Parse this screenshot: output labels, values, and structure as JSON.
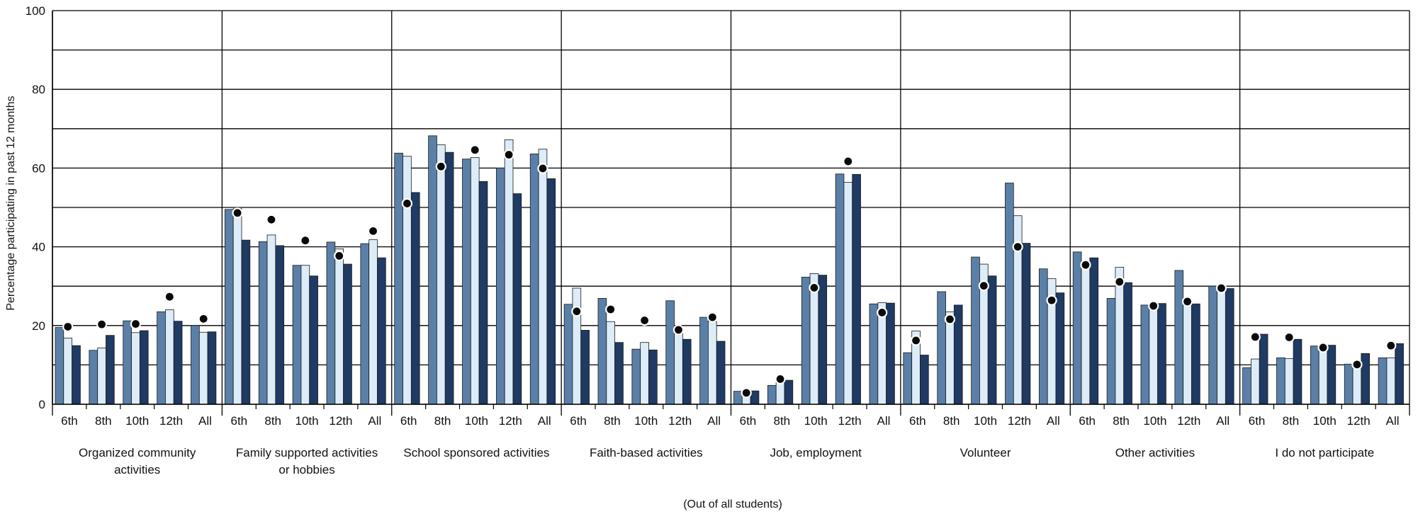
{
  "chart_data": {
    "type": "bar",
    "title": "",
    "ylabel": "Percentage participating in past 12 months",
    "xlabel": "(Out of all students)",
    "ylim": [
      0,
      100
    ],
    "yticks": [
      0,
      20,
      40,
      60,
      80,
      100
    ],
    "grid": true,
    "legend": "none",
    "groups": [
      "Organized community activities",
      "Family supported activities or hobbies",
      "School sponsored activities",
      "Faith-based activities",
      "Job, employment",
      "Volunteer",
      "Other activities",
      "I do not participate"
    ],
    "group_label_lines": [
      [
        "Organized community",
        "activities"
      ],
      [
        "Family supported activities",
        "or hobbies"
      ],
      [
        "School sponsored activities"
      ],
      [
        "Faith-based activities"
      ],
      [
        "Job, employment"
      ],
      [
        "Volunteer"
      ],
      [
        "Other activities"
      ],
      [
        "I do not participate"
      ]
    ],
    "subcategories": [
      "6th",
      "8th",
      "10th",
      "12th",
      "All"
    ],
    "series_colors": [
      "#5b80a8",
      "#dcecf8",
      "#1f3a63"
    ],
    "marker_color": "#0a0a0a",
    "series": [
      {
        "values": [
          [
            19.5,
            13.7,
            21.2,
            23.5,
            20.0
          ],
          [
            49.5,
            41.3,
            35.3,
            41.2,
            40.8
          ],
          [
            63.8,
            68.2,
            62.3,
            60.0,
            63.6
          ],
          [
            25.4,
            26.9,
            14.0,
            26.3,
            22.1
          ],
          [
            3.3,
            4.8,
            32.3,
            58.5,
            25.5
          ],
          [
            13.1,
            28.6,
            37.4,
            56.2,
            34.4
          ],
          [
            38.7,
            26.9,
            25.2,
            34.0,
            30.0
          ],
          [
            9.3,
            11.8,
            14.8,
            10.2,
            11.8
          ]
        ]
      },
      {
        "values": [
          [
            16.8,
            14.3,
            18.2,
            24.0,
            18.3
          ],
          [
            49.7,
            43.0,
            35.3,
            39.5,
            41.8
          ],
          [
            63.0,
            65.9,
            62.7,
            67.2,
            64.8
          ],
          [
            29.5,
            21.0,
            15.7,
            18.0,
            21.0
          ],
          [
            3.7,
            6.1,
            33.2,
            56.4,
            25.8
          ],
          [
            18.6,
            23.5,
            35.6,
            47.9,
            31.9
          ],
          [
            36.3,
            34.8,
            25.5,
            26.1,
            30.3
          ],
          [
            11.5,
            11.6,
            14.6,
            10.6,
            11.8
          ]
        ]
      },
      {
        "values": [
          [
            14.9,
            17.5,
            18.7,
            21.1,
            18.4
          ],
          [
            41.7,
            40.3,
            32.6,
            35.6,
            37.2
          ],
          [
            53.8,
            64.0,
            56.6,
            53.5,
            57.3
          ],
          [
            18.8,
            15.7,
            13.8,
            16.5,
            16.0
          ],
          [
            3.4,
            6.1,
            32.8,
            58.4,
            25.7
          ],
          [
            12.5,
            25.2,
            32.6,
            40.9,
            28.3
          ],
          [
            37.2,
            30.9,
            25.6,
            25.5,
            29.4
          ],
          [
            17.8,
            16.5,
            15.0,
            12.9,
            15.4
          ]
        ]
      }
    ],
    "markers": [
      [
        19.7,
        20.3,
        20.4,
        27.3,
        21.7
      ],
      [
        48.6,
        46.9,
        41.6,
        37.7,
        44.0
      ],
      [
        51.0,
        60.4,
        64.6,
        63.4,
        59.9
      ],
      [
        23.6,
        24.1,
        21.3,
        18.9,
        22.1
      ],
      [
        2.9,
        6.4,
        29.6,
        61.7,
        23.3
      ],
      [
        16.2,
        21.6,
        30.1,
        40.0,
        26.4
      ],
      [
        35.4,
        31.1,
        25.0,
        26.1,
        29.5
      ],
      [
        17.1,
        17.0,
        14.4,
        10.1,
        14.9
      ]
    ]
  }
}
